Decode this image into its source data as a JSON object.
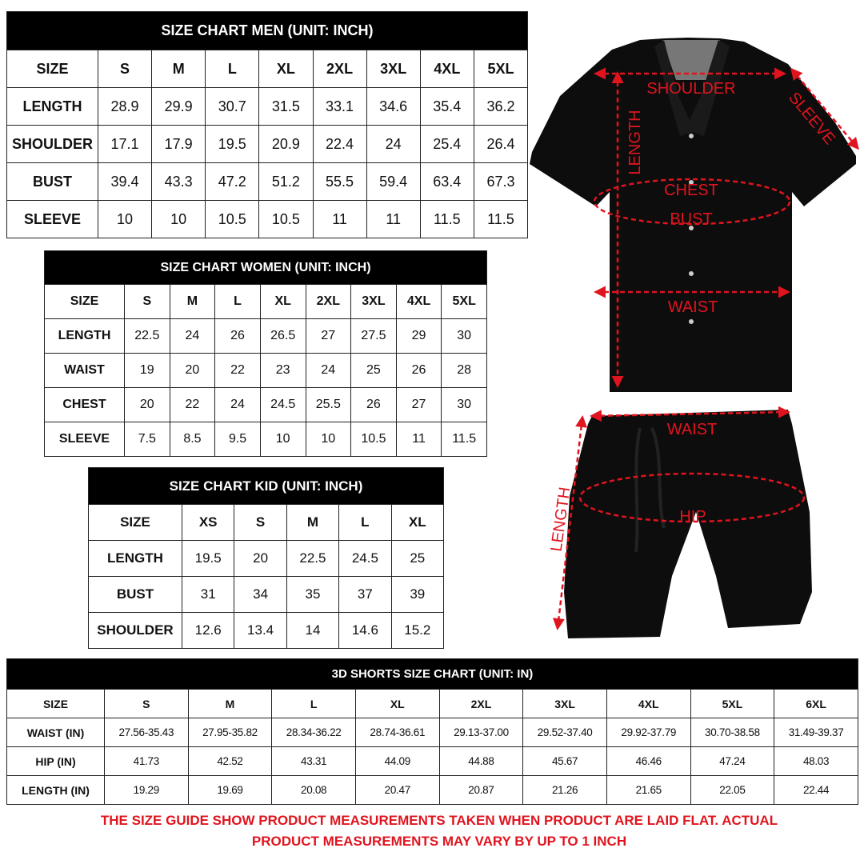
{
  "men": {
    "title": "SIZE CHART MEN (UNIT: INCH)",
    "header": [
      "SIZE",
      "S",
      "M",
      "L",
      "XL",
      "2XL",
      "3XL",
      "4XL",
      "5XL"
    ],
    "rows": [
      [
        "LENGTH",
        "28.9",
        "29.9",
        "30.7",
        "31.5",
        "33.1",
        "34.6",
        "35.4",
        "36.2"
      ],
      [
        "SHOULDER",
        "17.1",
        "17.9",
        "19.5",
        "20.9",
        "22.4",
        "24",
        "25.4",
        "26.4"
      ],
      [
        "BUST",
        "39.4",
        "43.3",
        "47.2",
        "51.2",
        "55.5",
        "59.4",
        "63.4",
        "67.3"
      ],
      [
        "SLEEVE",
        "10",
        "10",
        "10.5",
        "10.5",
        "11",
        "11",
        "11.5",
        "11.5"
      ]
    ]
  },
  "women": {
    "title": "SIZE CHART WOMEN (UNIT: INCH)",
    "header": [
      "SIZE",
      "S",
      "M",
      "L",
      "XL",
      "2XL",
      "3XL",
      "4XL",
      "5XL"
    ],
    "rows": [
      [
        "LENGTH",
        "22.5",
        "24",
        "26",
        "26.5",
        "27",
        "27.5",
        "29",
        "30"
      ],
      [
        "WAIST",
        "19",
        "20",
        "22",
        "23",
        "24",
        "25",
        "26",
        "28"
      ],
      [
        "CHEST",
        "20",
        "22",
        "24",
        "24.5",
        "25.5",
        "26",
        "27",
        "30"
      ],
      [
        "SLEEVE",
        "7.5",
        "8.5",
        "9.5",
        "10",
        "10",
        "10.5",
        "11",
        "11.5"
      ]
    ]
  },
  "kid": {
    "title": "SIZE CHART KID (UNIT: INCH)",
    "header": [
      "SIZE",
      "XS",
      "S",
      "M",
      "L",
      "XL"
    ],
    "rows": [
      [
        "LENGTH",
        "19.5",
        "20",
        "22.5",
        "24.5",
        "25"
      ],
      [
        "BUST",
        "31",
        "34",
        "35",
        "37",
        "39"
      ],
      [
        "SHOULDER",
        "12.6",
        "13.4",
        "14",
        "14.6",
        "15.2"
      ]
    ]
  },
  "shorts": {
    "title": "3D SHORTS SIZE CHART (UNIT: IN)",
    "header": [
      "SIZE",
      "S",
      "M",
      "L",
      "XL",
      "2XL",
      "3XL",
      "4XL",
      "5XL",
      "6XL"
    ],
    "rows": [
      [
        "WAIST (IN)",
        "27.56-35.43",
        "27.95-35.82",
        "28.34-36.22",
        "28.74-36.61",
        "29.13-37.00",
        "29.52-37.40",
        "29.92-37.79",
        "30.70-38.58",
        "31.49-39.37"
      ],
      [
        "HIP (IN)",
        "41.73",
        "42.52",
        "43.31",
        "44.09",
        "44.88",
        "45.67",
        "46.46",
        "47.24",
        "48.03"
      ],
      [
        "LENGTH (IN)",
        "19.29",
        "19.69",
        "20.08",
        "20.47",
        "20.87",
        "21.26",
        "21.65",
        "22.05",
        "22.44"
      ]
    ]
  },
  "shirt_labels": {
    "shoulder": "SHOULDER",
    "sleeve": "SLEEVE",
    "length": "LENGTH",
    "chest": "CHEST",
    "bust": "BUST",
    "waist": "WAIST"
  },
  "shorts_labels": {
    "waist": "WAIST",
    "hip": "HIP",
    "length": "LENGTH"
  },
  "note": {
    "line1": "THE SIZE GUIDE SHOW PRODUCT MEASUREMENTS TAKEN WHEN PRODUCT ARE LAID FLAT. ACTUAL",
    "line2": "PRODUCT MEASUREMENTS MAY VARY  BY UP TO 1 INCH"
  },
  "colors": {
    "annotation": "#e0141e",
    "header_bg": "#000000",
    "garment": "#0d0d0d"
  }
}
